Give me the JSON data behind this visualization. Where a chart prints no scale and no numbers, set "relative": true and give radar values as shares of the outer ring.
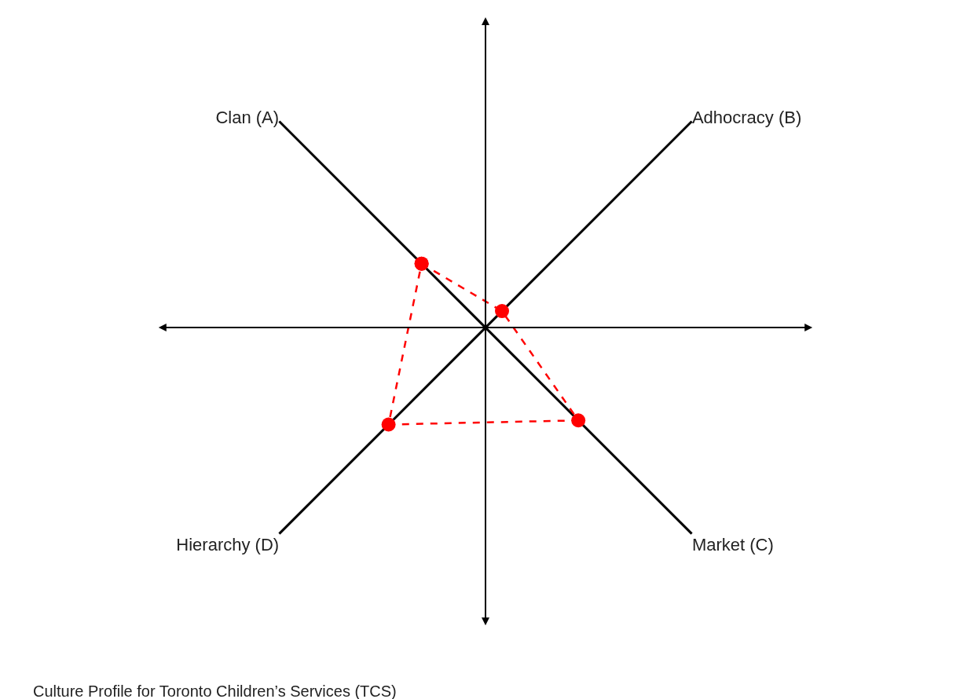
{
  "chart_data": {
    "type": "radar",
    "relative": true,
    "categories": [
      "Clan (A)",
      "Adhocracy (B)",
      "Market (C)",
      "Hierarchy (D)"
    ],
    "series": [
      {
        "color": "#ff0000",
        "values": [
          0.31,
          0.08,
          0.45,
          0.47
        ]
      }
    ],
    "marker": "circle",
    "line_style": "dashed",
    "grid": true,
    "annotations": [
      "Culture Profile for Toronto Children’s Services (TCS)"
    ]
  }
}
